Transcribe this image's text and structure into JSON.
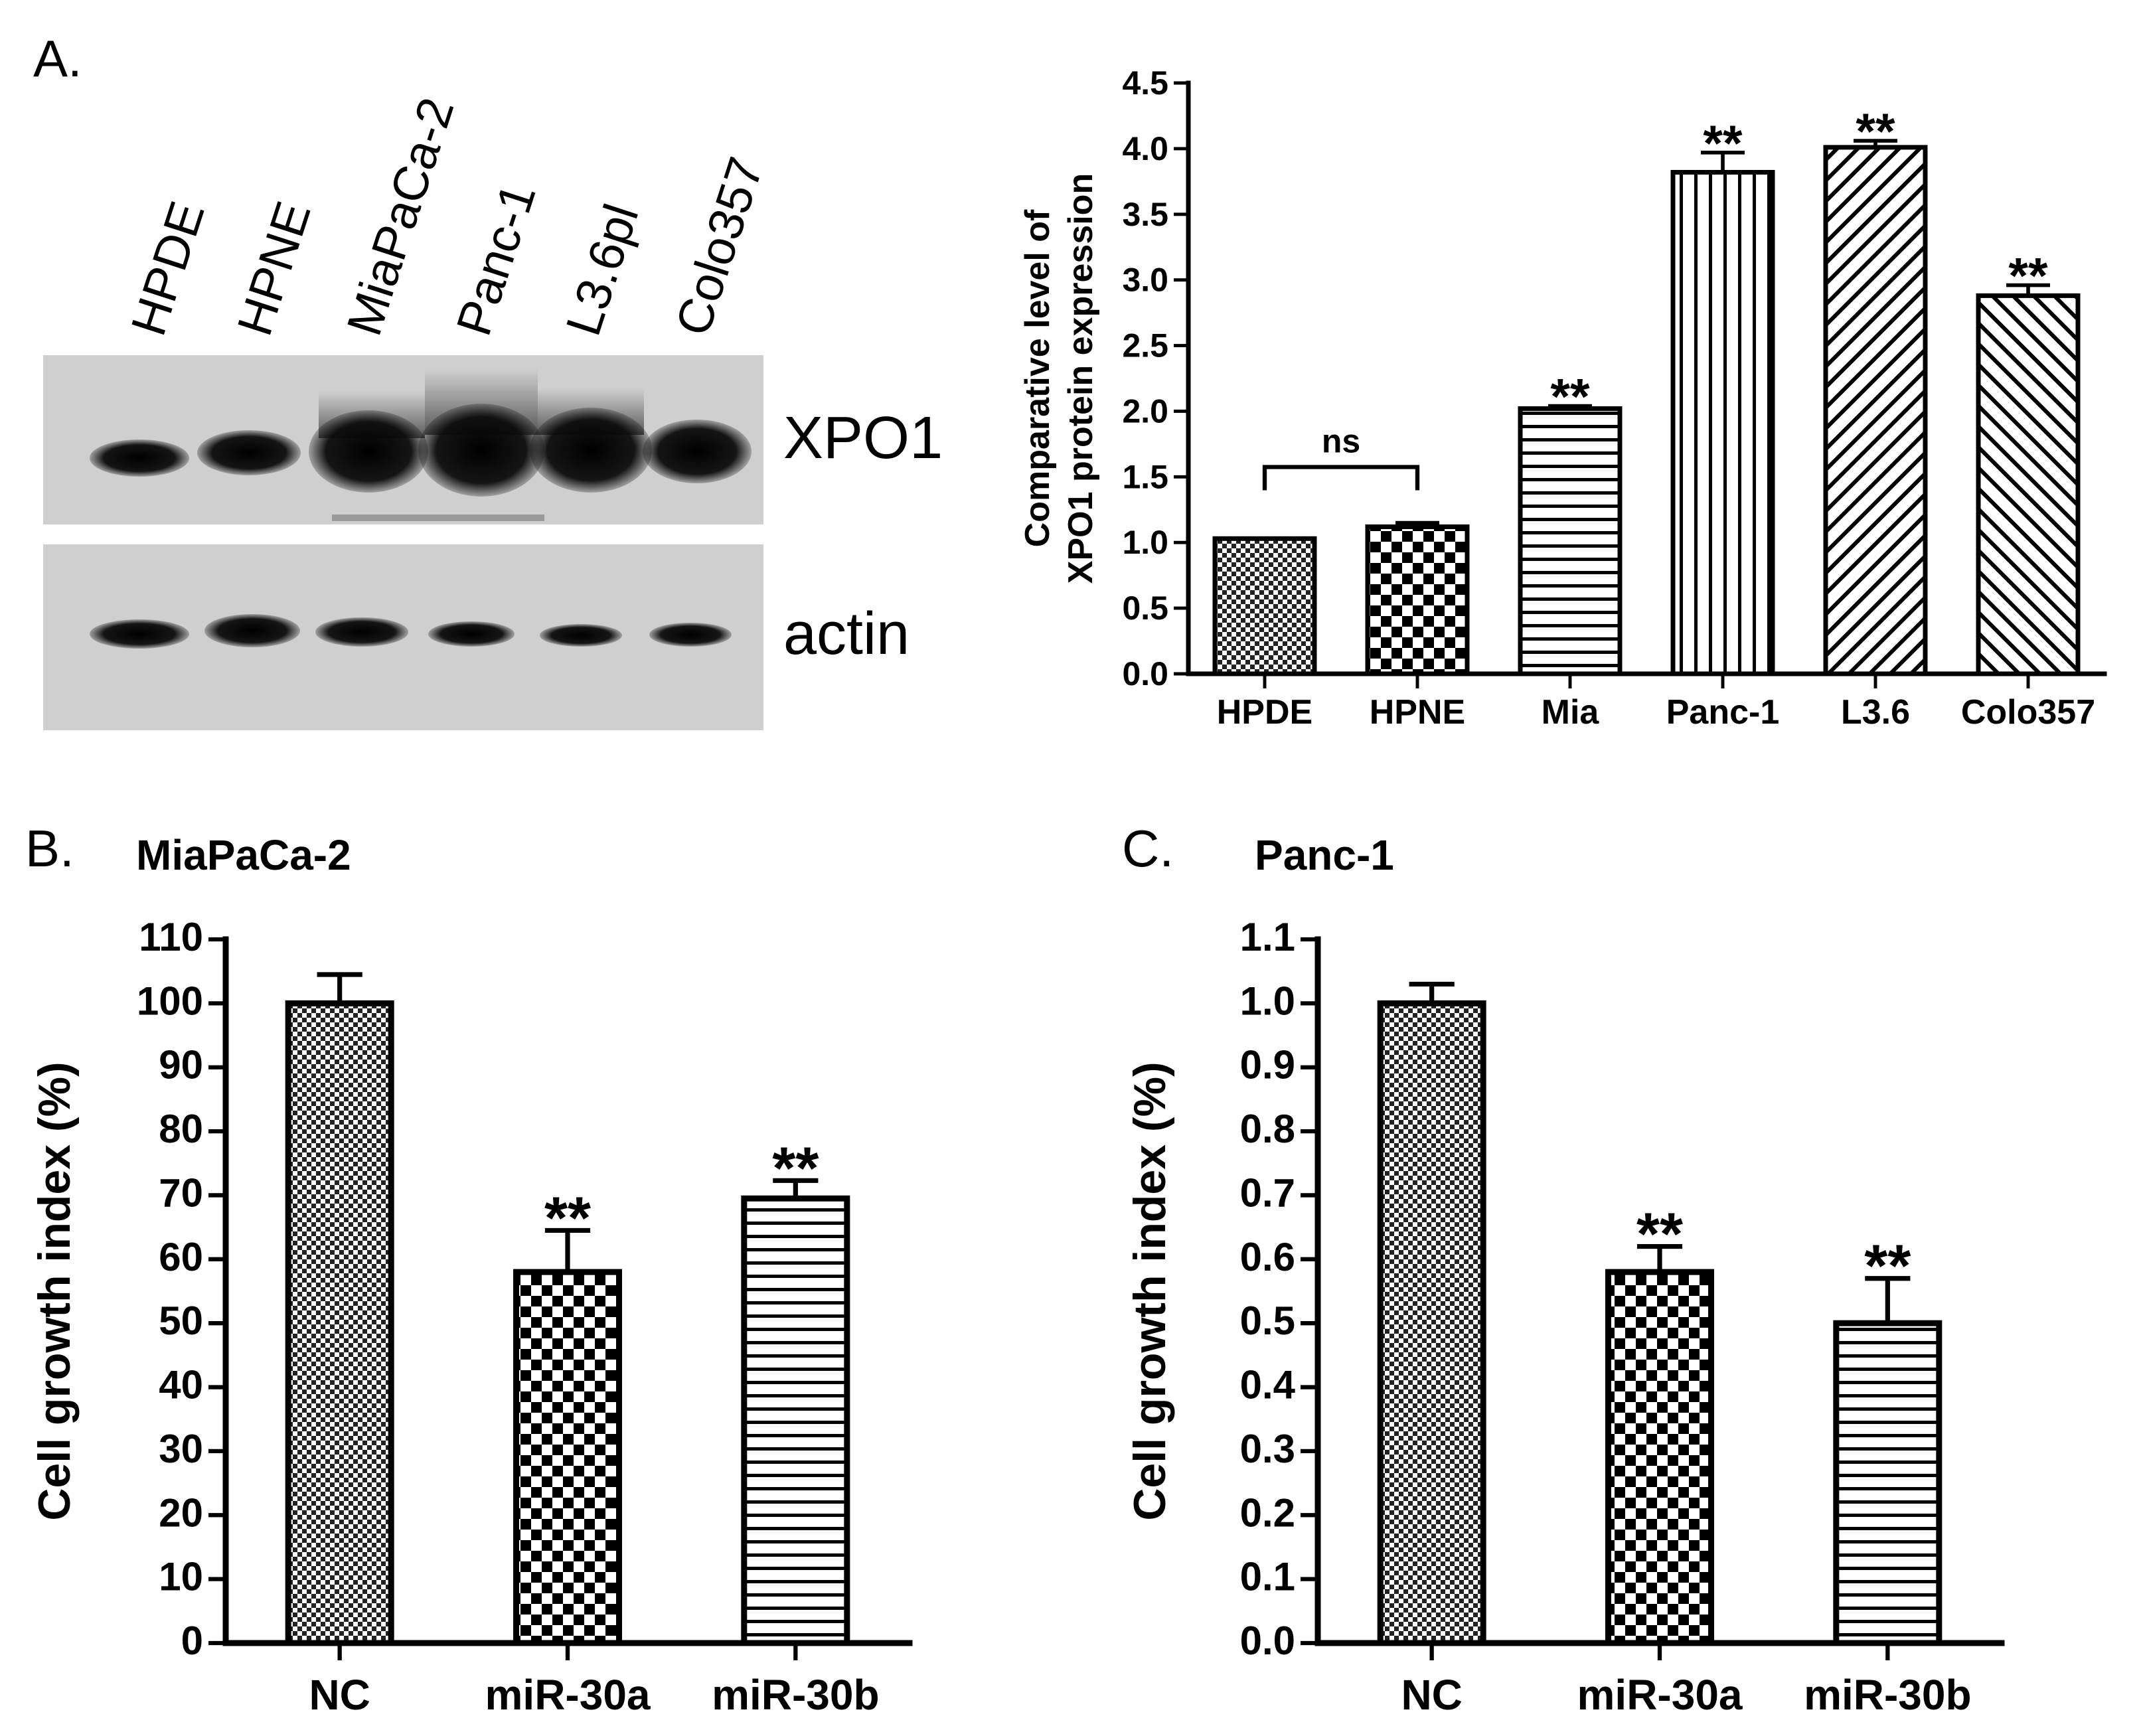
{
  "panel_a": {
    "letter": "A.",
    "lanes": [
      "HPDE",
      "HPNE",
      "MiaPaCa-2",
      "Panc-1",
      "L3.6pl",
      "Colo357"
    ],
    "blots": {
      "xpo1_label": "XPO1",
      "actin_label": "actin"
    }
  },
  "panel_b": {
    "letter": "B."
  },
  "panel_c": {
    "letter": "C."
  },
  "chart_data": [
    {
      "type": "bar",
      "panel": "A",
      "title": "",
      "ylabel_lines": [
        "Comparative level of",
        "XPO1 protein expression"
      ],
      "xlabel": "",
      "ylim": [
        0,
        4.5
      ],
      "yticks": [
        "0.0",
        "0.5",
        "1.0",
        "1.5",
        "2.0",
        "2.5",
        "3.0",
        "3.5",
        "4.0",
        "4.5"
      ],
      "categories": [
        "HPDE",
        "HPNE",
        "Mia",
        "Panc-1",
        "L3.6",
        "Colo357"
      ],
      "values": [
        1.03,
        1.12,
        2.02,
        3.82,
        4.01,
        2.88
      ],
      "errors": [
        0.0,
        0.03,
        0.02,
        0.15,
        0.05,
        0.08
      ],
      "significance": [
        "",
        "",
        "**",
        "**",
        "**",
        "**"
      ],
      "comparison": {
        "from": 0,
        "to": 1,
        "label": "ns"
      },
      "patterns": [
        "dots",
        "checker",
        "hlines",
        "vlines",
        "diag-right",
        "diag-left"
      ]
    },
    {
      "type": "bar",
      "panel": "B",
      "title": "MiaPaCa-2",
      "ylabel": "Cell growth index (%)",
      "xlabel": "",
      "ylim": [
        0,
        110
      ],
      "yticks": [
        "0",
        "10",
        "20",
        "30",
        "40",
        "50",
        "60",
        "70",
        "80",
        "90",
        "100",
        "110"
      ],
      "categories": [
        "NC",
        "miR-30a",
        "miR-30b"
      ],
      "values": [
        100,
        58,
        69.5
      ],
      "errors": [
        4.5,
        6.5,
        2.8
      ],
      "significance": [
        "",
        "**",
        "**"
      ],
      "patterns": [
        "dots",
        "checker",
        "hlines"
      ]
    },
    {
      "type": "bar",
      "panel": "C",
      "title": "Panc-1",
      "ylabel": "Cell growth index (%)",
      "xlabel": "",
      "ylim": [
        0,
        1.1
      ],
      "yticks": [
        "0.0",
        "0.1",
        "0.2",
        "0.3",
        "0.4",
        "0.5",
        "0.6",
        "0.7",
        "0.8",
        "0.9",
        "1.0",
        "1.1"
      ],
      "categories": [
        "NC",
        "miR-30a",
        "miR-30b"
      ],
      "values": [
        1.0,
        0.58,
        0.5
      ],
      "errors": [
        0.03,
        0.04,
        0.07
      ],
      "significance": [
        "",
        "**",
        "**"
      ],
      "patterns": [
        "dots",
        "checker",
        "hlines"
      ]
    }
  ]
}
